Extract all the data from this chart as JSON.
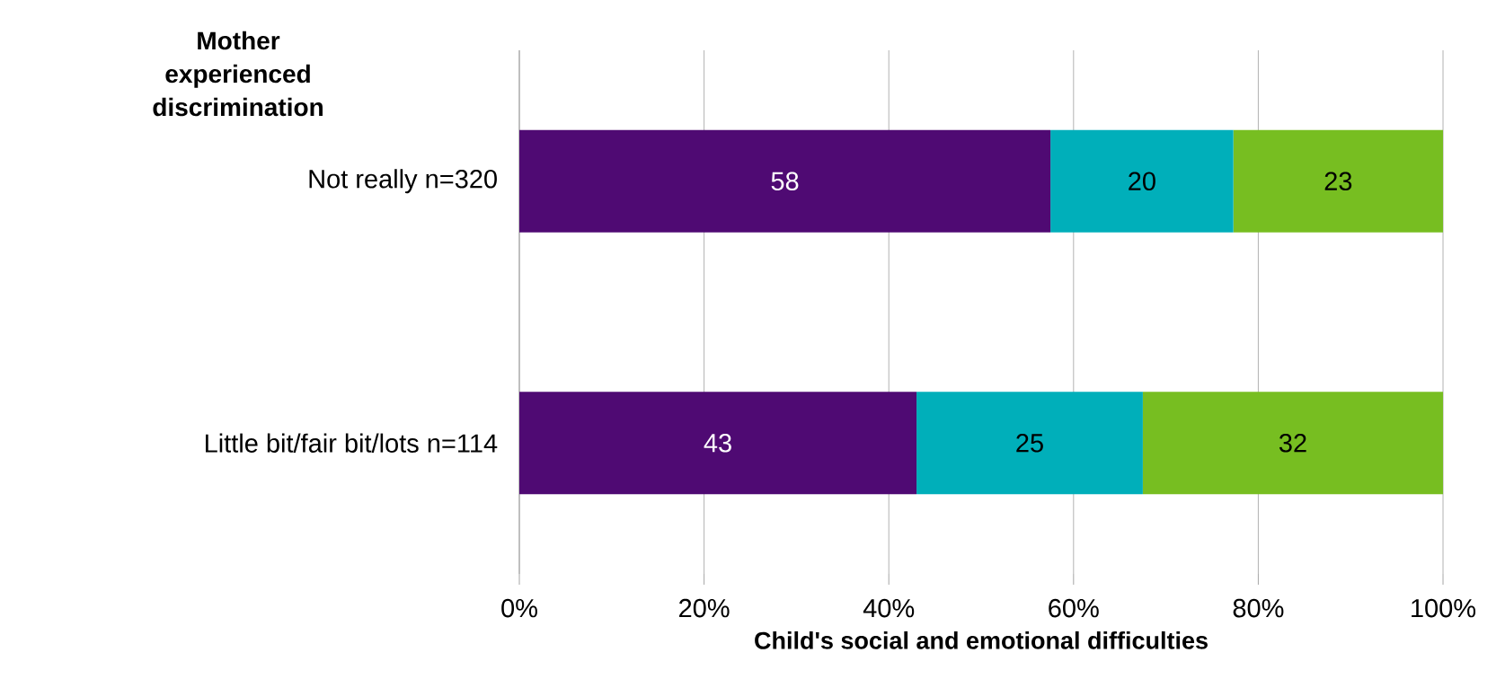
{
  "chart_data": {
    "type": "bar",
    "orientation": "horizontal",
    "stacked": true,
    "ylabel": "Mother experienced discrimination",
    "xlabel": "Child's social and emotional difficulties",
    "categories": [
      "Not really n=320",
      "Little bit/fair bit/lots n=114"
    ],
    "series": [
      {
        "color": "#4f0a73",
        "values": [
          57.5,
          43
        ],
        "value_labels": [
          "58",
          "43"
        ]
      },
      {
        "color": "#00afba",
        "values": [
          19.8,
          24.5
        ],
        "value_labels": [
          "20",
          "25"
        ]
      },
      {
        "color": "#77be21",
        "values": [
          22.7,
          32.5
        ],
        "value_labels": [
          "23",
          "32"
        ]
      }
    ],
    "xlim": [
      0,
      100
    ],
    "xticks": [
      {
        "value": 0,
        "label": "0%"
      },
      {
        "value": 20,
        "label": "20%"
      },
      {
        "value": 40,
        "label": "40%"
      },
      {
        "value": 60,
        "label": "60%"
      },
      {
        "value": 80,
        "label": "80%"
      },
      {
        "value": 100,
        "label": "100%"
      }
    ],
    "grid": "x"
  }
}
